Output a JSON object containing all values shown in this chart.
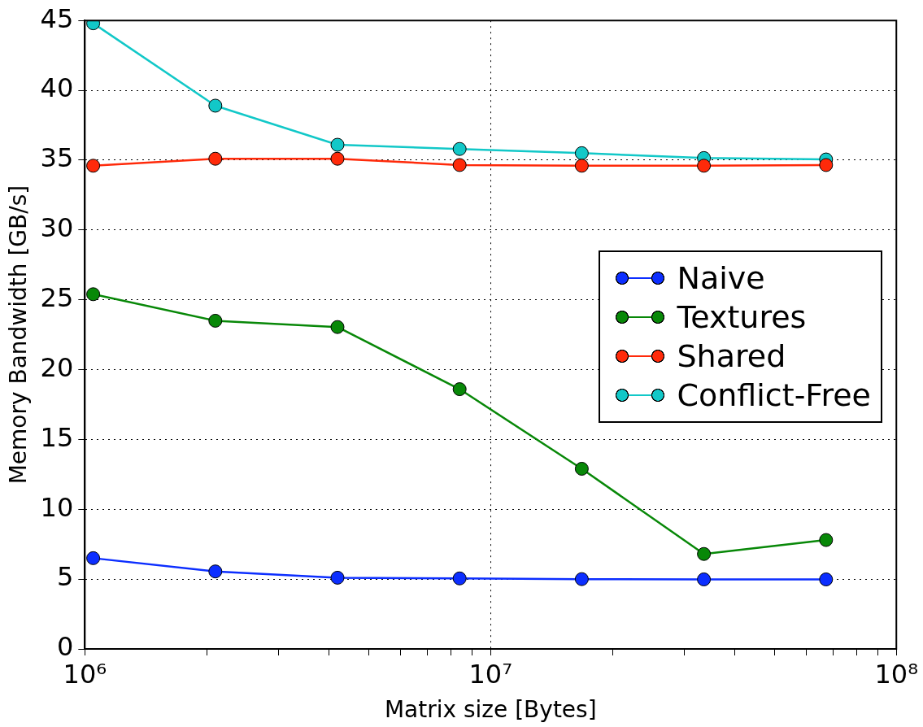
{
  "chart_data": {
    "type": "line",
    "xlabel": "Matrix size [Bytes]",
    "ylabel": "Memory Bandwidth [GB/s]",
    "log": "x",
    "x": [
      1048576,
      2097152,
      4194304,
      8388608,
      16777216,
      33554432,
      67108864
    ],
    "series": [
      {
        "name": "Naive",
        "color": "#0c2eff",
        "values": [
          6.5,
          5.55,
          5.1,
          5.05,
          5.0,
          4.98,
          4.98
        ]
      },
      {
        "name": "Textures",
        "color": "#088808",
        "values": [
          25.4,
          23.5,
          23.05,
          18.6,
          12.9,
          6.8,
          7.8
        ]
      },
      {
        "name": "Shared",
        "color": "#ff2a0a",
        "values": [
          34.6,
          35.1,
          35.1,
          34.65,
          34.6,
          34.6,
          34.65
        ]
      },
      {
        "name": "Conflict-Free",
        "color": "#12c8c8",
        "values": [
          44.8,
          38.9,
          36.1,
          35.8,
          35.5,
          35.15,
          35.05
        ]
      }
    ],
    "xlim": [
      1000000,
      100000000
    ],
    "xticks": [
      {
        "value": 1000000,
        "label": "10⁶"
      },
      {
        "value": 2000000,
        "label": null
      },
      {
        "value": 3000000,
        "label": null
      },
      {
        "value": 4000000,
        "label": null
      },
      {
        "value": 5000000,
        "label": null
      },
      {
        "value": 6000000,
        "label": null
      },
      {
        "value": 7000000,
        "label": null
      },
      {
        "value": 8000000,
        "label": null
      },
      {
        "value": 9000000,
        "label": null
      },
      {
        "value": 10000000,
        "label": "10⁷"
      },
      {
        "value": 20000000,
        "label": null
      },
      {
        "value": 30000000,
        "label": null
      },
      {
        "value": 40000000,
        "label": null
      },
      {
        "value": 50000000,
        "label": null
      },
      {
        "value": 60000000,
        "label": null
      },
      {
        "value": 70000000,
        "label": null
      },
      {
        "value": 80000000,
        "label": null
      },
      {
        "value": 90000000,
        "label": null
      },
      {
        "value": 100000000,
        "label": "10⁸"
      }
    ],
    "ylim": [
      0,
      45
    ],
    "yticks": [
      0,
      5,
      10,
      15,
      20,
      25,
      30,
      35,
      40,
      45
    ],
    "grid": true,
    "legend": "right",
    "marker": "circle",
    "line_style": "solid"
  }
}
